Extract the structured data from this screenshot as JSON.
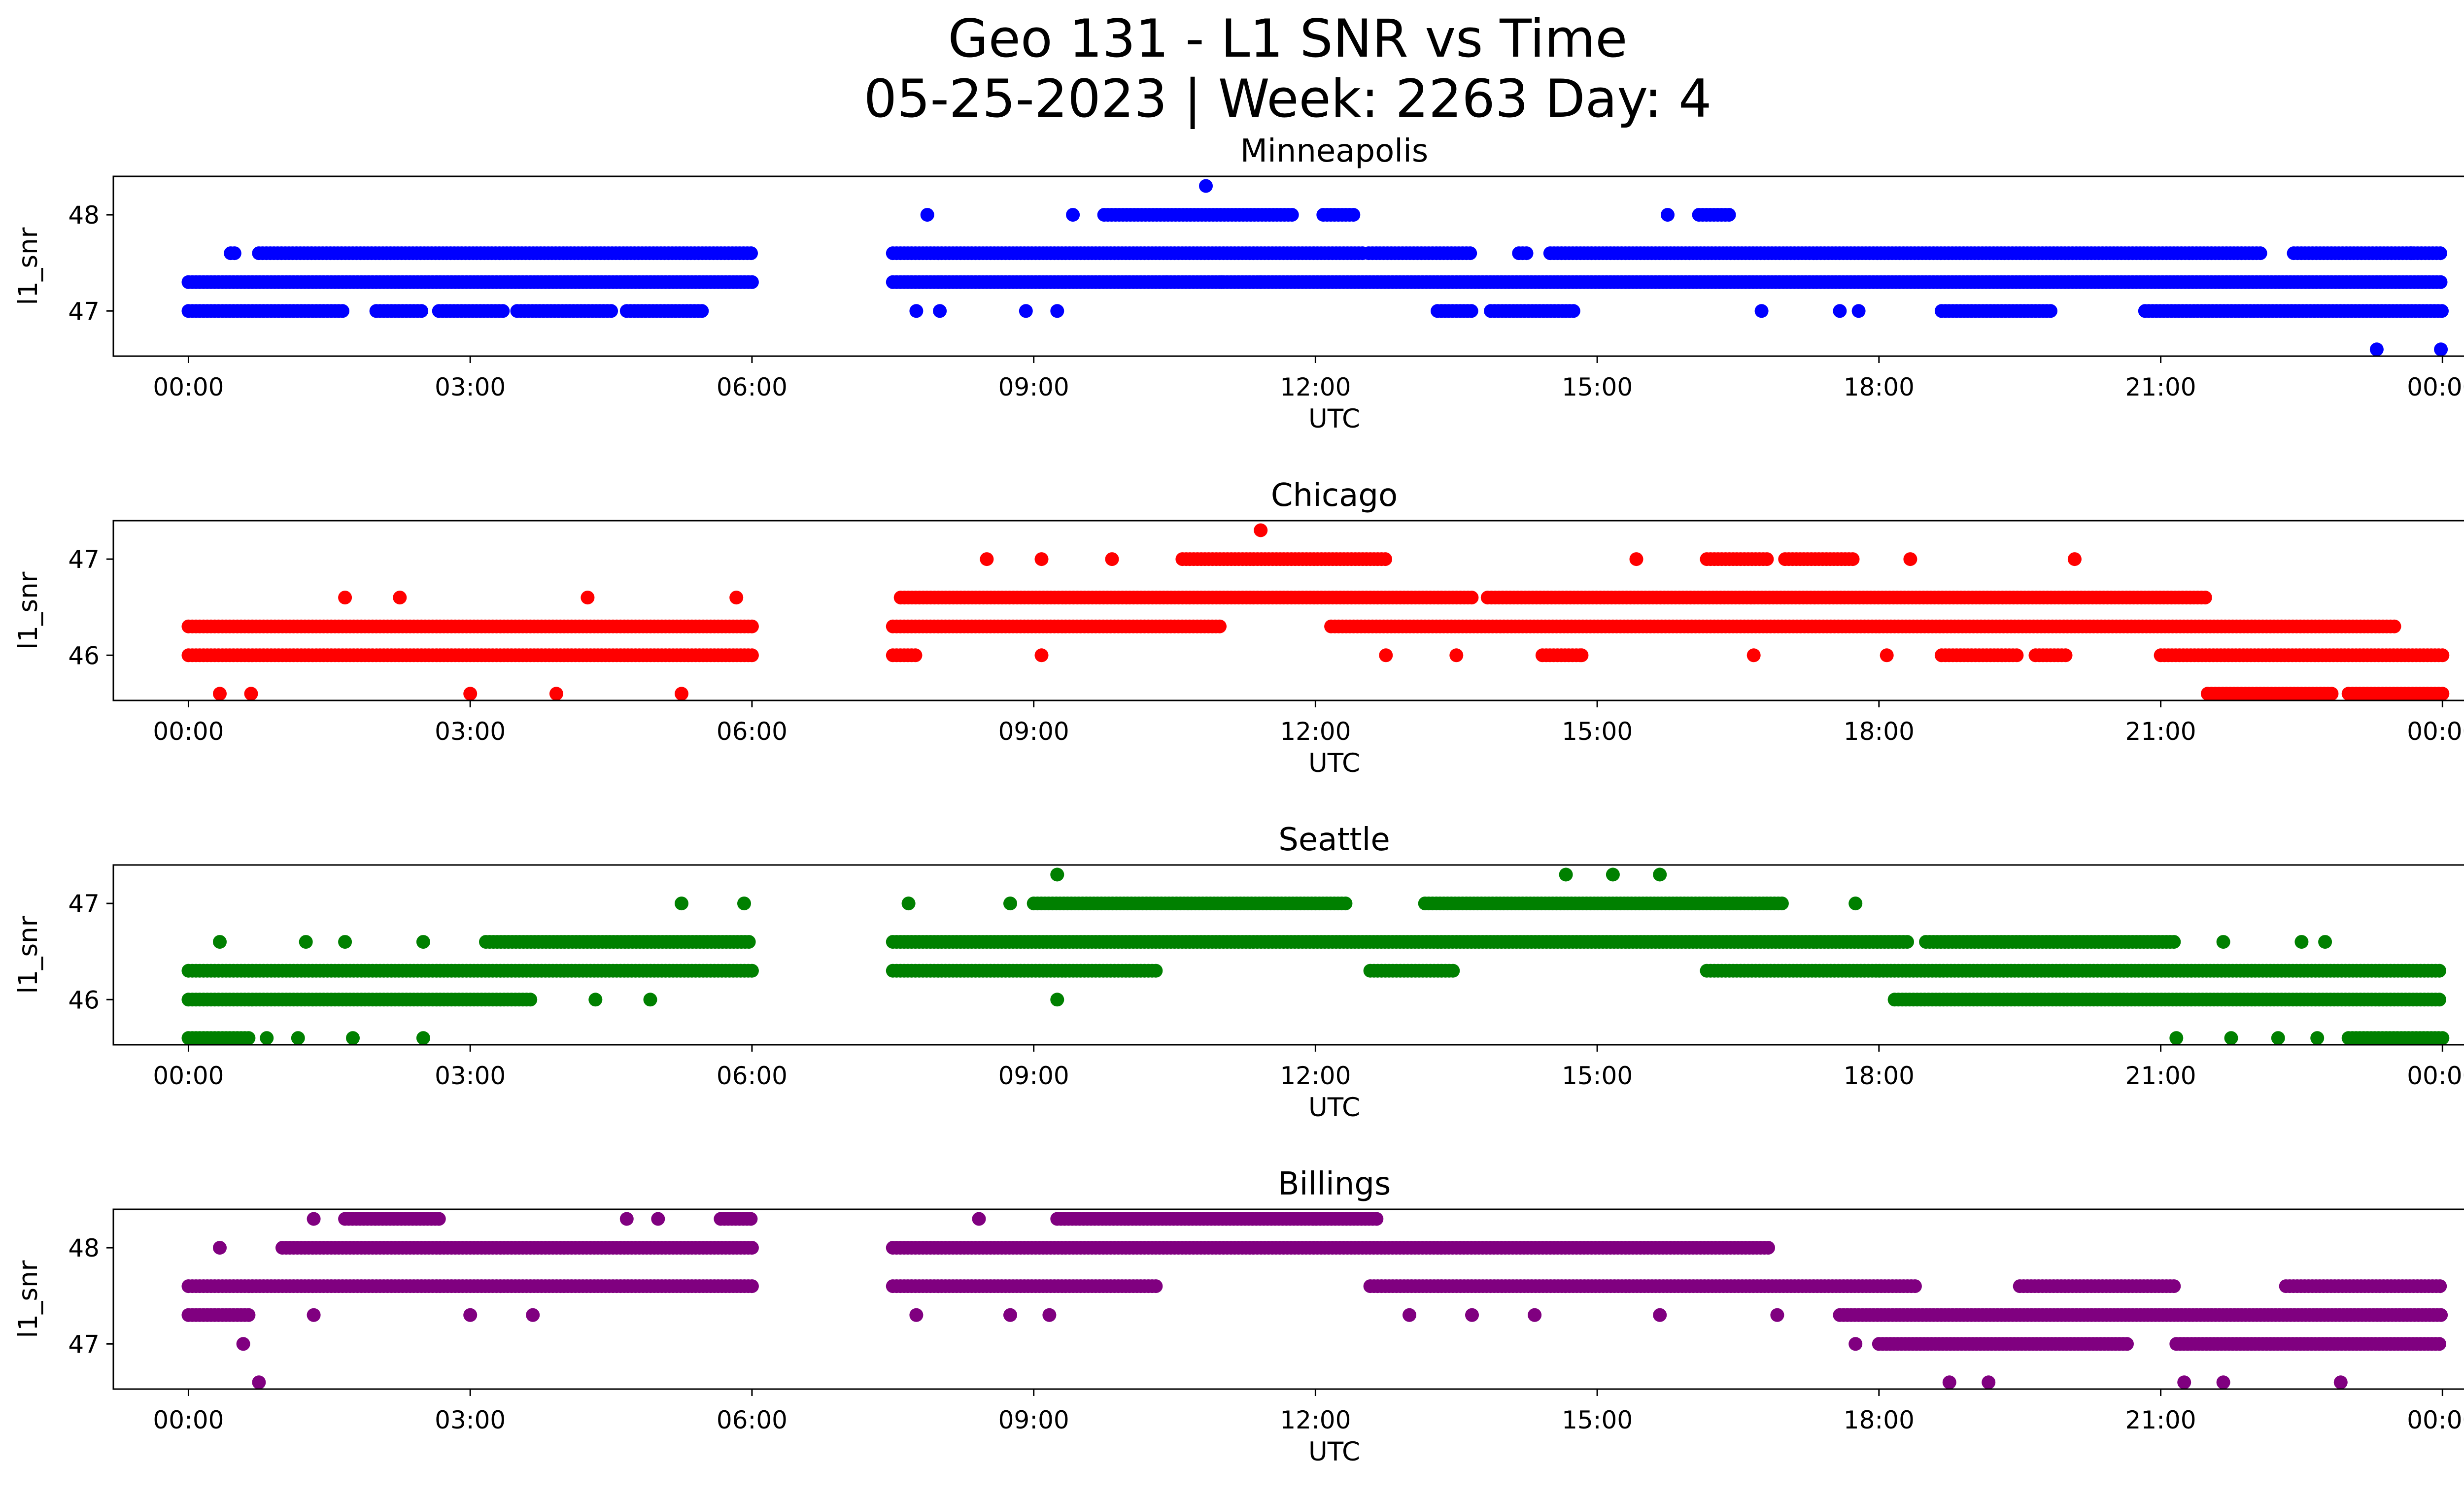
{
  "figure": {
    "title_line1": "Geo 131 - L1 SNR vs Time",
    "title_line2": "05-25-2023 | Week: 2263 Day: 4"
  },
  "chart_data": [
    {
      "type": "scatter",
      "title": "Minneapolis",
      "xlabel": "UTC",
      "ylabel": "l1_snr",
      "color": "#0000ff",
      "x_ticks": [
        "00:00",
        "03:00",
        "06:00",
        "09:00",
        "12:00",
        "15:00",
        "18:00",
        "21:00",
        "00:00"
      ],
      "y_ticks": [
        47,
        48
      ],
      "xlim": [
        "-00:48",
        "25:12"
      ],
      "ylim": [
        46.53,
        48.4
      ],
      "gap": [
        "06:00",
        "07:30"
      ],
      "series": [
        {
          "y": 47.3,
          "ranges": [
            [
              "00:00",
              "06:00"
            ],
            [
              "07:30",
              "24:00"
            ]
          ]
        },
        {
          "y": 47.6,
          "ranges": [
            [
              "00:27",
              "00:30"
            ],
            [
              "00:45",
              "06:00"
            ],
            [
              "07:30",
              "12:30"
            ],
            [
              "12:34",
              "13:39"
            ],
            [
              "14:10",
              "14:16"
            ],
            [
              "14:30",
              "22:05"
            ],
            [
              "22:25",
              "24:00"
            ]
          ]
        },
        {
          "y": 47.0,
          "ranges": [
            [
              "00:00",
              "01:40"
            ],
            [
              "02:00",
              "02:30"
            ],
            [
              "02:40",
              "03:22"
            ],
            [
              "03:30",
              "04:30"
            ],
            [
              "04:40",
              "05:30"
            ]
          ]
        },
        {
          "y": 47.0,
          "ranges": [
            [
              "13:18",
              "13:40"
            ],
            [
              "13:52",
              "14:45"
            ],
            [
              "18:40",
              "19:50"
            ],
            [
              "20:50",
              "24:00"
            ]
          ]
        },
        {
          "y": 48.0,
          "ranges": [
            [
              "09:45",
              "11:45"
            ],
            [
              "12:05",
              "12:25"
            ],
            [
              "16:05",
              "16:25"
            ]
          ]
        }
      ],
      "points": [
        {
          "x": "07:52",
          "y": 48.0
        },
        {
          "x": "09:25",
          "y": 48.0
        },
        {
          "x": "10:50",
          "y": 48.3
        },
        {
          "x": "15:45",
          "y": 48.0
        },
        {
          "x": "07:45",
          "y": 47.0
        },
        {
          "x": "08:00",
          "y": 47.0
        },
        {
          "x": "08:55",
          "y": 47.0
        },
        {
          "x": "09:15",
          "y": 47.0
        },
        {
          "x": "16:45",
          "y": 47.0
        },
        {
          "x": "17:35",
          "y": 47.0
        },
        {
          "x": "17:47",
          "y": 47.0
        },
        {
          "x": "23:18",
          "y": 46.6
        },
        {
          "x": "23:59",
          "y": 46.6
        },
        {
          "x": "23:40",
          "y": 47.6
        },
        {
          "x": "10:25",
          "y": 47.3
        },
        {
          "x": "11:00",
          "y": 47.3
        },
        {
          "x": "11:25",
          "y": 47.3
        }
      ]
    },
    {
      "type": "scatter",
      "title": "Chicago",
      "xlabel": "UTC",
      "ylabel": "l1_snr",
      "color": "#ff0000",
      "x_ticks": [
        "00:00",
        "03:00",
        "06:00",
        "09:00",
        "12:00",
        "15:00",
        "18:00",
        "21:00",
        "00:00"
      ],
      "y_ticks": [
        46,
        47
      ],
      "xlim": [
        "-00:48",
        "25:12"
      ],
      "ylim": [
        45.53,
        47.4
      ],
      "gap": [
        "06:00",
        "07:30"
      ],
      "series": [
        {
          "y": 46.0,
          "ranges": [
            [
              "00:00",
              "06:00"
            ],
            [
              "21:00",
              "24:00"
            ]
          ]
        },
        {
          "y": 46.3,
          "ranges": [
            [
              "00:00",
              "06:00"
            ],
            [
              "07:30",
              "11:00"
            ],
            [
              "12:10",
              "23:30"
            ]
          ]
        },
        {
          "y": 46.6,
          "ranges": [
            [
              "07:35",
              "13:40"
            ],
            [
              "13:50",
              "21:30"
            ]
          ]
        },
        {
          "y": 47.0,
          "ranges": [
            [
              "10:35",
              "12:45"
            ],
            [
              "16:10",
              "16:50"
            ],
            [
              "17:00",
              "17:45"
            ]
          ]
        },
        {
          "y": 46.0,
          "ranges": [
            [
              "07:30",
              "07:45"
            ],
            [
              "14:25",
              "14:50"
            ],
            [
              "18:40",
              "19:30"
            ],
            [
              "19:40",
              "20:00"
            ]
          ]
        },
        {
          "y": 45.6,
          "ranges": [
            [
              "21:30",
              "22:50"
            ],
            [
              "23:00",
              "24:00"
            ]
          ]
        }
      ],
      "points": [
        {
          "x": "11:25",
          "y": 47.3
        },
        {
          "x": "08:30",
          "y": 47.0
        },
        {
          "x": "09:05",
          "y": 47.0
        },
        {
          "x": "09:50",
          "y": 47.0
        },
        {
          "x": "15:25",
          "y": 47.0
        },
        {
          "x": "18:20",
          "y": 47.0
        },
        {
          "x": "20:05",
          "y": 47.0
        },
        {
          "x": "01:40",
          "y": 46.6
        },
        {
          "x": "02:15",
          "y": 46.6
        },
        {
          "x": "04:15",
          "y": 46.6
        },
        {
          "x": "05:50",
          "y": 46.6
        },
        {
          "x": "00:20",
          "y": 45.6
        },
        {
          "x": "00:40",
          "y": 45.6
        },
        {
          "x": "03:00",
          "y": 45.6
        },
        {
          "x": "03:55",
          "y": 45.6
        },
        {
          "x": "05:15",
          "y": 45.6
        },
        {
          "x": "09:05",
          "y": 46.0
        },
        {
          "x": "12:45",
          "y": 46.0
        },
        {
          "x": "13:30",
          "y": 46.0
        },
        {
          "x": "14:50",
          "y": 46.0
        },
        {
          "x": "16:40",
          "y": 46.0
        },
        {
          "x": "18:05",
          "y": 46.0
        }
      ]
    },
    {
      "type": "scatter",
      "title": "Seattle",
      "xlabel": "UTC",
      "ylabel": "l1_snr",
      "color": "#008000",
      "x_ticks": [
        "00:00",
        "03:00",
        "06:00",
        "09:00",
        "12:00",
        "15:00",
        "18:00",
        "21:00",
        "00:00"
      ],
      "y_ticks": [
        46,
        47
      ],
      "xlim": [
        "-00:48",
        "25:12"
      ],
      "ylim": [
        45.53,
        47.4
      ],
      "gap": [
        "06:00",
        "07:30"
      ],
      "series": [
        {
          "y": 46.0,
          "ranges": [
            [
              "00:00",
              "03:40"
            ],
            [
              "18:10",
              "24:00"
            ]
          ]
        },
        {
          "y": 46.3,
          "ranges": [
            [
              "00:00",
              "06:00"
            ],
            [
              "07:30",
              "10:20"
            ],
            [
              "12:35",
              "13:30"
            ],
            [
              "16:10",
              "24:00"
            ]
          ]
        },
        {
          "y": 46.6,
          "ranges": [
            [
              "03:10",
              "06:00"
            ],
            [
              "07:30",
              "18:20"
            ],
            [
              "18:30",
              "21:10"
            ]
          ]
        },
        {
          "y": 47.0,
          "ranges": [
            [
              "09:00",
              "12:20"
            ],
            [
              "13:10",
              "17:00"
            ]
          ]
        },
        {
          "y": 45.6,
          "ranges": [
            [
              "00:00",
              "00:40"
            ],
            [
              "23:00",
              "24:00"
            ]
          ]
        }
      ],
      "points": [
        {
          "x": "09:15",
          "y": 47.3
        },
        {
          "x": "14:40",
          "y": 47.3
        },
        {
          "x": "15:10",
          "y": 47.3
        },
        {
          "x": "15:40",
          "y": 47.3
        },
        {
          "x": "07:40",
          "y": 47.0
        },
        {
          "x": "08:45",
          "y": 47.0
        },
        {
          "x": "05:15",
          "y": 47.0
        },
        {
          "x": "05:55",
          "y": 47.0
        },
        {
          "x": "17:45",
          "y": 47.0
        },
        {
          "x": "00:20",
          "y": 46.6
        },
        {
          "x": "01:15",
          "y": 46.6
        },
        {
          "x": "01:40",
          "y": 46.6
        },
        {
          "x": "02:30",
          "y": 46.6
        },
        {
          "x": "21:40",
          "y": 46.6
        },
        {
          "x": "22:30",
          "y": 46.6
        },
        {
          "x": "22:45",
          "y": 46.6
        },
        {
          "x": "04:20",
          "y": 46.0
        },
        {
          "x": "04:55",
          "y": 46.0
        },
        {
          "x": "09:15",
          "y": 46.0
        },
        {
          "x": "00:50",
          "y": 45.6
        },
        {
          "x": "01:10",
          "y": 45.6
        },
        {
          "x": "01:45",
          "y": 45.6
        },
        {
          "x": "02:30",
          "y": 45.6
        },
        {
          "x": "21:10",
          "y": 45.6
        },
        {
          "x": "21:45",
          "y": 45.6
        },
        {
          "x": "22:15",
          "y": 45.6
        },
        {
          "x": "22:40",
          "y": 45.6
        }
      ]
    },
    {
      "type": "scatter",
      "title": "Billings",
      "xlabel": "UTC",
      "ylabel": "l1_snr",
      "color": "#800080",
      "x_ticks": [
        "00:00",
        "03:00",
        "06:00",
        "09:00",
        "12:00",
        "15:00",
        "18:00",
        "21:00",
        "00:00"
      ],
      "y_ticks": [
        47,
        48
      ],
      "xlim": [
        "-00:48",
        "25:12"
      ],
      "ylim": [
        46.53,
        48.4
      ],
      "gap": [
        "06:00",
        "07:30"
      ],
      "series": [
        {
          "y": 47.3,
          "ranges": [
            [
              "00:00",
              "00:40"
            ],
            [
              "17:35",
              "24:00"
            ]
          ]
        },
        {
          "y": 47.6,
          "ranges": [
            [
              "00:00",
              "06:00"
            ],
            [
              "07:30",
              "10:20"
            ],
            [
              "12:35",
              "18:25"
            ],
            [
              "19:30",
              "21:10"
            ]
          ]
        },
        {
          "y": 48.0,
          "ranges": [
            [
              "01:00",
              "06:00"
            ],
            [
              "07:30",
              "16:50"
            ]
          ]
        },
        {
          "y": 48.3,
          "ranges": [
            [
              "01:40",
              "02:40"
            ],
            [
              "09:15",
              "12:40"
            ],
            [
              "05:40",
              "06:00"
            ]
          ]
        },
        {
          "y": 47.0,
          "ranges": [
            [
              "18:00",
              "20:40"
            ],
            [
              "21:10",
              "24:00"
            ]
          ]
        },
        {
          "y": 47.6,
          "ranges": [
            [
              "22:20",
              "24:00"
            ]
          ]
        }
      ],
      "points": [
        {
          "x": "00:20",
          "y": 48.0
        },
        {
          "x": "01:20",
          "y": 48.3
        },
        {
          "x": "04:40",
          "y": 48.3
        },
        {
          "x": "05:00",
          "y": 48.3
        },
        {
          "x": "08:25",
          "y": 48.3
        },
        {
          "x": "00:35",
          "y": 47.0
        },
        {
          "x": "00:45",
          "y": 46.6
        },
        {
          "x": "01:20",
          "y": 47.3
        },
        {
          "x": "03:00",
          "y": 47.3
        },
        {
          "x": "03:40",
          "y": 47.3
        },
        {
          "x": "07:45",
          "y": 47.3
        },
        {
          "x": "08:45",
          "y": 47.3
        },
        {
          "x": "09:10",
          "y": 47.3
        },
        {
          "x": "13:00",
          "y": 47.3
        },
        {
          "x": "13:40",
          "y": 47.3
        },
        {
          "x": "14:20",
          "y": 47.3
        },
        {
          "x": "15:40",
          "y": 47.3
        },
        {
          "x": "16:55",
          "y": 47.3
        },
        {
          "x": "17:45",
          "y": 47.0
        },
        {
          "x": "18:45",
          "y": 46.6
        },
        {
          "x": "19:10",
          "y": 46.6
        },
        {
          "x": "21:40",
          "y": 46.6
        },
        {
          "x": "22:55",
          "y": 46.6
        },
        {
          "x": "21:15",
          "y": 46.6
        }
      ]
    }
  ]
}
